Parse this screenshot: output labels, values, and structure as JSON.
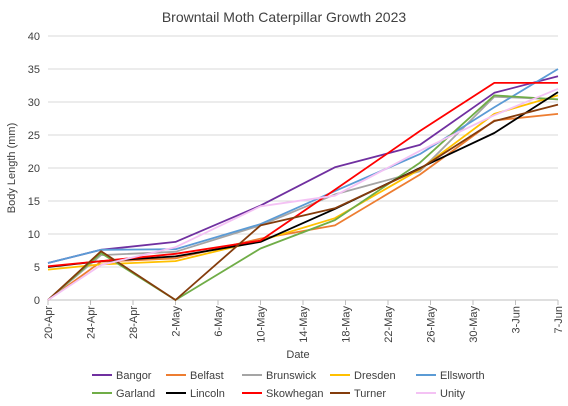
{
  "chart_data": {
    "type": "line",
    "title": "Browntail Moth Caterpillar Growth 2023",
    "xlabel": "Date",
    "ylabel": "Body Length (mm)",
    "ylim": [
      0,
      40
    ],
    "yticks": [
      0,
      5,
      10,
      15,
      20,
      25,
      30,
      35,
      40
    ],
    "x_tick_labels": [
      "20-Apr",
      "24-Apr",
      "28-Apr",
      "2-May",
      "6-May",
      "10-May",
      "14-May",
      "18-May",
      "22-May",
      "26-May",
      "30-May",
      "3-Jun",
      "7-Jun"
    ],
    "grid": "horizontal",
    "legend_position": "bottom",
    "series": [
      {
        "name": "Bangor",
        "color": "#7030a0",
        "points": [
          [
            "2023-04-20",
            5.6
          ],
          [
            "2023-04-25",
            7.6
          ],
          [
            "2023-05-02",
            8.8
          ],
          [
            "2023-05-10",
            14.3
          ],
          [
            "2023-05-17",
            20.1
          ],
          [
            "2023-05-25",
            23.5
          ],
          [
            "2023-06-01",
            31.4
          ],
          [
            "2023-06-07",
            33.9
          ]
        ]
      },
      {
        "name": "Belfast",
        "color": "#ed7d31",
        "points": [
          [
            "2023-04-20",
            0
          ],
          [
            "2023-04-25",
            5.8
          ],
          [
            "2023-05-02",
            6.3
          ],
          [
            "2023-05-10",
            9.3
          ],
          [
            "2023-05-17",
            11.3
          ],
          [
            "2023-05-25",
            19.0
          ],
          [
            "2023-06-01",
            27.2
          ],
          [
            "2023-06-07",
            28.2
          ]
        ]
      },
      {
        "name": "Brunswick",
        "color": "#a5a5a5",
        "points": [
          [
            "2023-04-20",
            0
          ],
          [
            "2023-04-25",
            6.8
          ],
          [
            "2023-05-02",
            7.3
          ],
          [
            "2023-05-10",
            11.3
          ],
          [
            "2023-05-17",
            16.0
          ],
          [
            "2023-05-25",
            19.5
          ],
          [
            "2023-06-01",
            30.8
          ],
          [
            "2023-06-07",
            30.4
          ]
        ]
      },
      {
        "name": "Dresden",
        "color": "#ffc000",
        "points": [
          [
            "2023-04-20",
            4.6
          ],
          [
            "2023-04-25",
            5.4
          ],
          [
            "2023-05-02",
            5.9
          ],
          [
            "2023-05-10",
            9.0
          ],
          [
            "2023-05-17",
            12.4
          ],
          [
            "2023-05-25",
            19.8
          ],
          [
            "2023-06-01",
            28.2
          ],
          [
            "2023-06-07",
            31.0
          ]
        ]
      },
      {
        "name": "Ellsworth",
        "color": "#5b9bd5",
        "points": [
          [
            "2023-04-20",
            5.6
          ],
          [
            "2023-04-25",
            7.6
          ],
          [
            "2023-05-02",
            7.7
          ],
          [
            "2023-05-10",
            11.5
          ],
          [
            "2023-05-17",
            16.5
          ],
          [
            "2023-05-25",
            22.1
          ],
          [
            "2023-06-01",
            29.2
          ],
          [
            "2023-06-07",
            35.0
          ]
        ]
      },
      {
        "name": "Garland",
        "color": "#70ad47",
        "points": [
          [
            "2023-04-20",
            0
          ],
          [
            "2023-04-25",
            7.1
          ],
          [
            "2023-05-02",
            0
          ],
          [
            "2023-05-10",
            7.8
          ],
          [
            "2023-05-17",
            12.1
          ],
          [
            "2023-05-25",
            20.8
          ],
          [
            "2023-06-01",
            31.0
          ],
          [
            "2023-06-07",
            30.4
          ]
        ]
      },
      {
        "name": "Lincoln",
        "color": "#000000",
        "points": [
          [
            "2023-04-20",
            5.0
          ],
          [
            "2023-04-25",
            5.9
          ],
          [
            "2023-05-02",
            6.6
          ],
          [
            "2023-05-10",
            8.8
          ],
          [
            "2023-05-17",
            13.8
          ],
          [
            "2023-05-25",
            20.0
          ],
          [
            "2023-06-01",
            25.3
          ],
          [
            "2023-06-07",
            31.5
          ]
        ]
      },
      {
        "name": "Skowhegan",
        "color": "#ff0000",
        "points": [
          [
            "2023-04-20",
            5.1
          ],
          [
            "2023-04-25",
            5.9
          ],
          [
            "2023-05-02",
            7.0
          ],
          [
            "2023-05-10",
            9.0
          ],
          [
            "2023-05-17",
            16.7
          ],
          [
            "2023-05-25",
            25.6
          ],
          [
            "2023-06-01",
            32.9
          ],
          [
            "2023-06-07",
            32.9
          ]
        ]
      },
      {
        "name": "Turner",
        "color": "#843c0c",
        "points": [
          [
            "2023-04-20",
            0
          ],
          [
            "2023-04-25",
            7.4
          ],
          [
            "2023-05-02",
            0
          ],
          [
            "2023-05-10",
            11.3
          ],
          [
            "2023-05-17",
            13.9
          ],
          [
            "2023-05-25",
            19.9
          ],
          [
            "2023-06-01",
            27.1
          ],
          [
            "2023-06-07",
            29.6
          ]
        ]
      },
      {
        "name": "Unity",
        "color": "#f4c2f4",
        "points": [
          [
            "2023-04-20",
            0
          ],
          [
            "2023-04-25",
            5.3
          ],
          [
            "2023-05-02",
            8.0
          ],
          [
            "2023-05-10",
            14.2
          ],
          [
            "2023-05-17",
            15.8
          ],
          [
            "2023-05-25",
            22.6
          ],
          [
            "2023-06-01",
            28.0
          ],
          [
            "2023-06-07",
            32.0
          ]
        ]
      }
    ]
  }
}
